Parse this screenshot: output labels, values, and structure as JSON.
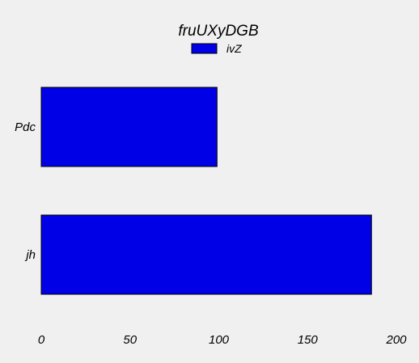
{
  "chart_data": {
    "type": "bar",
    "orientation": "horizontal",
    "title": "fruUXyDGB",
    "xlabel": "",
    "ylabel": "",
    "categories": [
      "Pdc",
      "jh"
    ],
    "series": [
      {
        "name": "ivZ",
        "values": [
          99,
          186
        ]
      }
    ],
    "xlim": [
      0,
      200
    ],
    "x_ticks": [
      0,
      50,
      100,
      150,
      200
    ],
    "grid": false,
    "legend_position": "top-center",
    "colors": {
      "bar_fill": "#0000e6",
      "bar_stroke": "#000000",
      "background": "#f0f0f0"
    }
  }
}
